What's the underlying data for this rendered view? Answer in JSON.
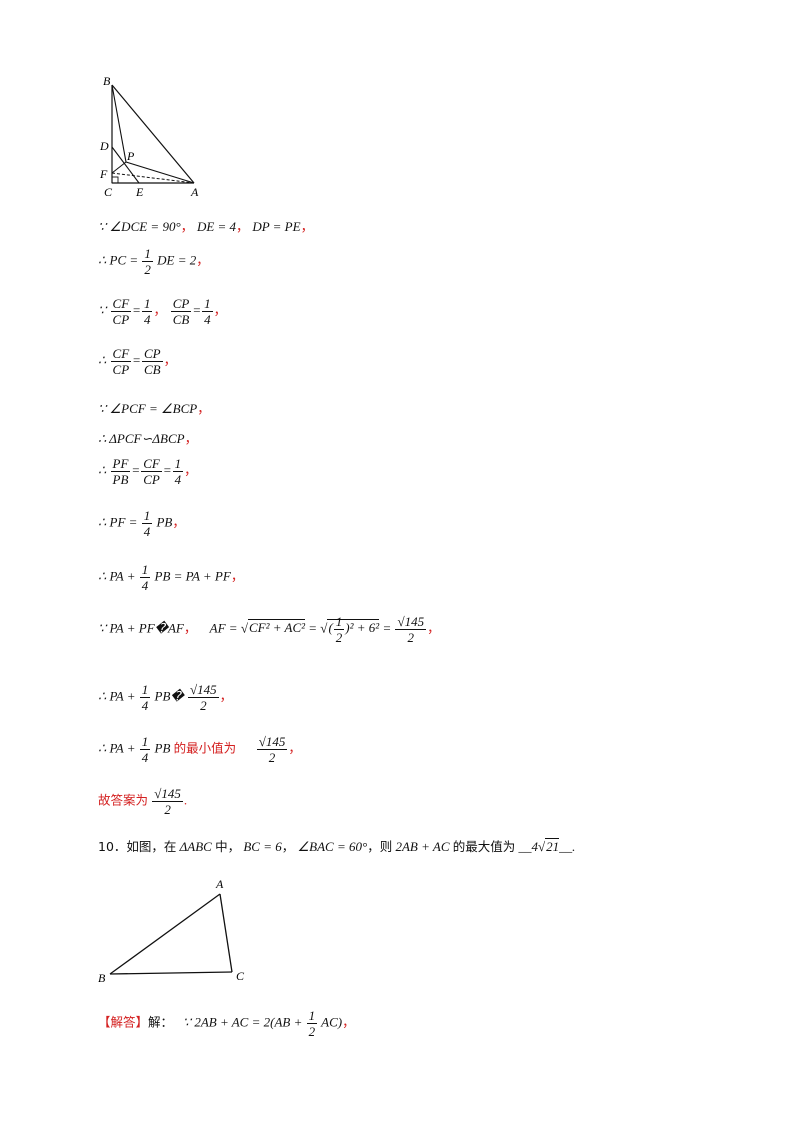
{
  "fig1": {
    "labels": {
      "B": "B",
      "D": "D",
      "P": "P",
      "F": "F",
      "C": "C",
      "E": "E",
      "A": "A"
    }
  },
  "l1": {
    "sym": "∵",
    "a": "∠DCE = 90°",
    "b": "DE = 4",
    "c": "DP = PE",
    "sep": "，"
  },
  "l2": {
    "sym": "∴",
    "lhs": "PC =",
    "fn": "1",
    "fd": "2",
    "rhs": "DE = 2",
    "sep": "，"
  },
  "l3": {
    "sym": "∵",
    "f1n": "CF",
    "f1d": "CP",
    "eq1": "=",
    "f2n": "1",
    "f2d": "4",
    "f3n": "CP",
    "f3d": "CB",
    "eq2": "=",
    "f4n": "1",
    "f4d": "4",
    "sep1": "，",
    "sep2": "，"
  },
  "l4": {
    "sym": "∴",
    "f1n": "CF",
    "f1d": "CP",
    "eq": "=",
    "f2n": "CP",
    "f2d": "CB",
    "sep": "，"
  },
  "l5": {
    "sym": "∵",
    "text": "∠PCF = ∠BCP",
    "sep": "，"
  },
  "l6": {
    "sym": "∴",
    "text": "ΔPCF∽ΔBCP",
    "sep": "，"
  },
  "l7": {
    "sym": "∴",
    "f1n": "PF",
    "f1d": "PB",
    "f2n": "CF",
    "f2d": "CP",
    "f3n": "1",
    "f3d": "4",
    "eq": "=",
    "sep": "，"
  },
  "l8": {
    "sym": "∴",
    "lhs": "PF =",
    "fn": "1",
    "fd": "4",
    "rhs": "PB",
    "sep": "，"
  },
  "l9": {
    "sym": "∴",
    "lhs": "PA +",
    "fn": "1",
    "fd": "4",
    "rhs": "PB = PA + PF",
    "sep": "，"
  },
  "l10": {
    "sym": "∵",
    "lhs": "PA + PF�AF",
    "sep1": "，",
    "af": "AF =",
    "rad1": "CF² + AC²",
    "eq": "=",
    "inner_n": "1",
    "inner_d": "2",
    "rest": ")² + 6²",
    "paren": "(",
    "rn": "√145",
    "rd": "2",
    "sep2": "，"
  },
  "l11": {
    "sym": "∴",
    "lhs": "PA +",
    "fn": "1",
    "fd": "4",
    "mid": "PB�",
    "rn": "√145",
    "rd": "2",
    "sep": "，"
  },
  "l12": {
    "sym": "∴",
    "lhs": "PA +",
    "fn": "1",
    "fd": "4",
    "mid": "PB",
    "red": "的最小值为",
    "rn": "√145",
    "rd": "2",
    "sep": "，"
  },
  "l13": {
    "red": "故答案为",
    "rn": "√145",
    "rd": "2",
    "sep": "."
  },
  "q10": {
    "num": "10．如图，在",
    "tri": "ΔABC",
    "t1": "中，",
    "bc": "BC = 6",
    "t2": "，",
    "ang": "∠BAC = 60°",
    "t3": "，则",
    "expr": "2AB + AC",
    "t4": "的最大值为",
    "ans_pre": "__",
    "ans_coef": "4",
    "ans_rad": "21",
    "ans_post": "__."
  },
  "fig2": {
    "labels": {
      "A": "A",
      "B": "B",
      "C": "C"
    }
  },
  "sol": {
    "tag": "【解答】",
    "jie": "解：",
    "sym": "∵",
    "lhs": "2AB + AC = 2(AB +",
    "fn": "1",
    "fd": "2",
    "rhs": "AC)",
    "sep": "，"
  }
}
